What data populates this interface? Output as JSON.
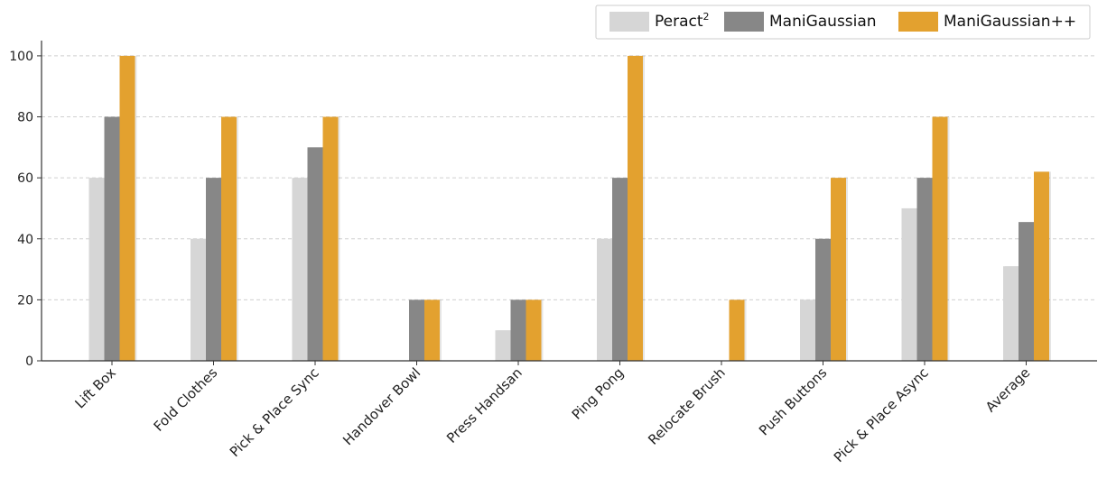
{
  "chart_data": {
    "type": "bar",
    "categories": [
      "Lift Box",
      "Fold Clothes",
      "Pick & Place Sync",
      "Handover Bowl",
      "Press Handsan",
      "Ping Pong",
      "Relocate Brush",
      "Push Buttons",
      "Pick & Place Async",
      "Average"
    ],
    "series": [
      {
        "name": "Peract",
        "name_sup": "2",
        "color": "#d6d6d6",
        "values": [
          60,
          40,
          60,
          0,
          10,
          40,
          0,
          20,
          50,
          31
        ]
      },
      {
        "name": "ManiGaussian",
        "color": "#878787",
        "values": [
          80,
          60,
          70,
          20,
          20,
          60,
          0,
          40,
          60,
          45.5
        ]
      },
      {
        "name": "ManiGaussian++",
        "color": "#e3a12f",
        "values": [
          100,
          80,
          80,
          20,
          20,
          100,
          20,
          60,
          80,
          62
        ]
      }
    ],
    "yticks": [
      0,
      20,
      40,
      60,
      80,
      100
    ],
    "ylim": [
      0,
      105
    ],
    "grid": "horizontal-dashed",
    "legend_position": "top-right"
  }
}
